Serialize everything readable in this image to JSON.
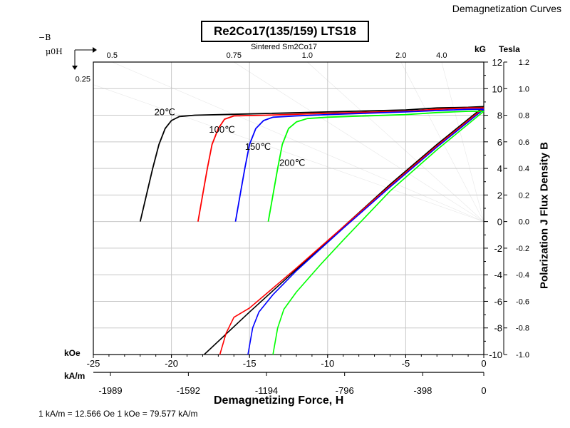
{
  "header_title": "Demagnetization Curves",
  "chart_title": "Re2Co17(135/159) LTS18",
  "subtitle": "Sintered Sm2Co17",
  "footnote": "1 kA/m = 12.566 Oe    1 kOe = 79.577 kA/m",
  "corner_label": {
    "top": "−B",
    "bottom": "μ0H"
  },
  "chart_data": {
    "type": "line",
    "xlabel": "Demagnetizing Force, H",
    "ylabel": "Polarization J Flux Density B",
    "x_unit": "kOe",
    "x2_unit": "kA/m",
    "y_unit": "kG",
    "y2_unit": "Tesla",
    "xlim": [
      -25,
      0
    ],
    "ylim": [
      -10,
      12
    ],
    "grid": true,
    "x_ticks": [
      -25,
      -20,
      -15,
      -10,
      -5,
      0
    ],
    "x_tick_labels": [
      "-25",
      "-20",
      "-15",
      "-10",
      "-5",
      "0"
    ],
    "x2_ticks": [
      -1989,
      -1592,
      -1194,
      -796,
      -398,
      0
    ],
    "x2_tick_labels": [
      "-1989",
      "-1592",
      "-1194",
      "-796",
      "-398",
      "0"
    ],
    "y_ticks": [
      -10,
      -8,
      -6,
      -4,
      -2,
      0,
      2,
      4,
      6,
      8,
      10,
      12
    ],
    "y_tick_labels": [
      "-10",
      "-8",
      "-6",
      "-4",
      "-2",
      "0",
      "2",
      "4",
      "6",
      "8",
      "10",
      "12"
    ],
    "y2_tick_labels": [
      "-1.0",
      "-0.8",
      "-0.6",
      "-0.4",
      "-0.2",
      "0.0",
      "0.2",
      "0.4",
      "0.6",
      "0.8",
      "1.0",
      "1.2"
    ],
    "load_lines": [
      {
        "label": "0.25",
        "H": -25,
        "B": 10.3
      },
      {
        "label": "0.5",
        "H": -23.8,
        "B": 12
      },
      {
        "label": "0.75",
        "H": -16.0,
        "B": 12
      },
      {
        "label": "1.0",
        "H": -11.3,
        "B": 12
      },
      {
        "label": "2.0",
        "H": -5.3,
        "B": 12
      },
      {
        "label": "4.0",
        "H": -2.7,
        "B": 12
      }
    ],
    "series": [
      {
        "name": "20℃",
        "color": "#000000",
        "J": [
          [
            -22.0,
            0
          ],
          [
            -21.6,
            2.0
          ],
          [
            -21.2,
            4.0
          ],
          [
            -20.8,
            5.8
          ],
          [
            -20.4,
            7.0
          ],
          [
            -20.0,
            7.6
          ],
          [
            -19.5,
            7.9
          ],
          [
            -18.5,
            8.0
          ],
          [
            -15,
            8.1
          ],
          [
            -10,
            8.25
          ],
          [
            -5,
            8.4
          ],
          [
            -3,
            8.55
          ],
          [
            -1,
            8.6
          ],
          [
            0,
            8.65
          ]
        ],
        "B": [
          [
            -17.9,
            -10
          ],
          [
            -15,
            -6.8
          ],
          [
            -12,
            -3.6
          ],
          [
            -9,
            -0.4
          ],
          [
            -6,
            2.8
          ],
          [
            -3,
            5.8
          ],
          [
            0,
            8.65
          ]
        ]
      },
      {
        "name": "100℃",
        "color": "#ff0000",
        "J": [
          [
            -18.3,
            0
          ],
          [
            -18.0,
            2.0
          ],
          [
            -17.7,
            4.0
          ],
          [
            -17.4,
            5.8
          ],
          [
            -17.0,
            7.0
          ],
          [
            -16.6,
            7.7
          ],
          [
            -16.0,
            7.95
          ],
          [
            -14,
            8.0
          ],
          [
            -10,
            8.15
          ],
          [
            -5,
            8.3
          ],
          [
            -3,
            8.45
          ],
          [
            -1,
            8.55
          ],
          [
            0,
            8.55
          ]
        ],
        "B": [
          [
            -16.9,
            -10
          ],
          [
            -16.5,
            -8.4
          ],
          [
            -16.0,
            -7.2
          ],
          [
            -15,
            -6.5
          ],
          [
            -12,
            -3.5
          ],
          [
            -9,
            -0.4
          ],
          [
            -6,
            2.7
          ],
          [
            -3,
            5.7
          ],
          [
            0,
            8.55
          ]
        ]
      },
      {
        "name": "150℃",
        "color": "#0000ff",
        "J": [
          [
            -15.9,
            0
          ],
          [
            -15.6,
            2.0
          ],
          [
            -15.3,
            4.0
          ],
          [
            -15.0,
            5.8
          ],
          [
            -14.6,
            7.0
          ],
          [
            -14.1,
            7.6
          ],
          [
            -13.5,
            7.85
          ],
          [
            -12,
            7.95
          ],
          [
            -10,
            8.05
          ],
          [
            -5,
            8.25
          ],
          [
            -3,
            8.35
          ],
          [
            -1,
            8.45
          ],
          [
            0,
            8.45
          ]
        ],
        "B": [
          [
            -15.1,
            -10
          ],
          [
            -14.8,
            -8.0
          ],
          [
            -14.4,
            -6.8
          ],
          [
            -13.5,
            -5.5
          ],
          [
            -12,
            -3.7
          ],
          [
            -9,
            -0.5
          ],
          [
            -6,
            2.6
          ],
          [
            -3,
            5.6
          ],
          [
            0,
            8.45
          ]
        ]
      },
      {
        "name": "200℃",
        "color": "#00ff00",
        "J": [
          [
            -13.8,
            0
          ],
          [
            -13.5,
            2.0
          ],
          [
            -13.2,
            4.0
          ],
          [
            -12.9,
            5.8
          ],
          [
            -12.5,
            7.0
          ],
          [
            -12.0,
            7.5
          ],
          [
            -11.3,
            7.75
          ],
          [
            -10,
            7.85
          ],
          [
            -5,
            8.05
          ],
          [
            -3,
            8.2
          ],
          [
            -1,
            8.3
          ],
          [
            0,
            8.3
          ]
        ],
        "B": [
          [
            -13.5,
            -10
          ],
          [
            -13.2,
            -8.0
          ],
          [
            -12.8,
            -6.6
          ],
          [
            -12,
            -5.3
          ],
          [
            -10.5,
            -3.3
          ],
          [
            -9,
            -1.4
          ],
          [
            -6,
            2.3
          ],
          [
            -3,
            5.4
          ],
          [
            0,
            8.3
          ]
        ]
      }
    ],
    "series_label_anchors": [
      {
        "H": -21.0,
        "B": 8.1
      },
      {
        "H": -17.5,
        "B": 6.8
      },
      {
        "H": -15.2,
        "B": 5.5
      },
      {
        "H": -13.0,
        "B": 4.3
      }
    ]
  }
}
